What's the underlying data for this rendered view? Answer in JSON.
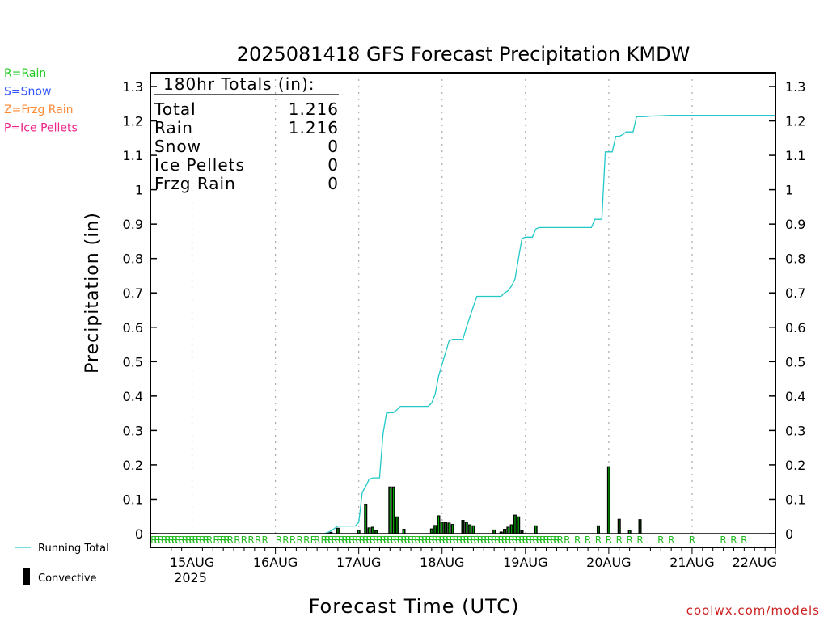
{
  "page": {
    "credit": "coolwx.com/models"
  },
  "legend_left": [
    {
      "label": "R=Rain",
      "color": "#22cc22"
    },
    {
      "label": "S=Snow",
      "color": "#3355ff"
    },
    {
      "label": "Z=Frzg Rain",
      "color": "#ff8833"
    },
    {
      "label": "P=Ice Pellets",
      "color": "#ee2288"
    }
  ],
  "legend_bottom": {
    "running_total": "Running Total",
    "convective": "Convective"
  },
  "totals_box": {
    "header": "180hr Totals (in):",
    "rows": [
      {
        "label": "Total",
        "value": "1.216"
      },
      {
        "label": "Rain",
        "value": "1.216"
      },
      {
        "label": "Snow",
        "value": "0"
      },
      {
        "label": "Ice Pellets",
        "value": "0"
      },
      {
        "label": "Frzg Rain",
        "value": "0"
      }
    ]
  },
  "chart_data": {
    "type": "bar",
    "title": "2025081418 GFS Forecast Precipitation KMDW",
    "xlabel": "Forecast Time (UTC)",
    "ylabel": "Precipitation (in)",
    "ylim": [
      0,
      1.35
    ],
    "yticks": [
      "0",
      "0.1",
      "0.2",
      "0.3",
      "0.4",
      "0.5",
      "0.6",
      "0.7",
      "0.8",
      "0.9",
      "1",
      "1.1",
      "1.2",
      "1.3"
    ],
    "xlim": [
      -6,
      174
    ],
    "xticks": [
      {
        "hour": 6,
        "label": "15AUG",
        "sub": "2025"
      },
      {
        "hour": 30,
        "label": "16AUG",
        "sub": ""
      },
      {
        "hour": 54,
        "label": "17AUG",
        "sub": ""
      },
      {
        "hour": 78,
        "label": "18AUG",
        "sub": ""
      },
      {
        "hour": 102,
        "label": "19AUG",
        "sub": ""
      },
      {
        "hour": 126,
        "label": "20AUG",
        "sub": ""
      },
      {
        "hour": 150,
        "label": "21AUG",
        "sub": ""
      },
      {
        "hour": 174,
        "label": "22AUG",
        "sub": ""
      }
    ],
    "grid": true,
    "colors": {
      "running_total": "#22c8c8",
      "bar": "#000000",
      "bar_inner": "#00aa00",
      "ptype": "#22bb22"
    },
    "precip_bars": {
      "name": "Convective",
      "x": [
        45,
        46,
        48,
        54,
        56,
        57,
        58,
        59,
        63,
        64,
        65,
        67,
        75,
        76,
        77,
        78,
        79,
        80,
        81,
        84,
        85,
        86,
        87,
        93,
        95,
        96,
        97,
        98,
        99,
        100,
        101,
        105,
        123,
        126,
        129,
        132,
        135
      ],
      "values": [
        0.003,
        0.005,
        0.017,
        0.011,
        0.087,
        0.018,
        0.02,
        0.01,
        0.137,
        0.137,
        0.05,
        0.014,
        0.015,
        0.025,
        0.053,
        0.034,
        0.034,
        0.032,
        0.028,
        0.04,
        0.034,
        0.027,
        0.024,
        0.012,
        0.006,
        0.014,
        0.02,
        0.027,
        0.055,
        0.05,
        0.01,
        0.024,
        0.024,
        0.196,
        0.043,
        0.01,
        0.042
      ]
    },
    "running_total": {
      "name": "Running Total",
      "x": [
        0,
        44,
        45,
        46,
        47,
        48,
        49,
        50,
        51,
        52,
        53,
        54,
        55,
        56,
        57,
        58,
        59,
        60,
        61,
        62,
        63,
        64,
        65,
        66,
        67,
        68,
        69,
        70,
        71,
        72,
        73,
        74,
        75,
        76,
        77,
        78,
        79,
        80,
        81,
        82,
        83,
        84,
        85,
        86,
        87,
        88,
        89,
        90,
        91,
        92,
        93,
        94,
        95,
        96,
        97,
        98,
        99,
        100,
        101,
        102,
        103,
        104,
        105,
        106,
        107,
        108,
        109,
        110,
        111,
        112,
        113,
        114,
        115,
        116,
        117,
        118,
        119,
        120,
        121,
        122,
        123,
        124,
        125,
        126,
        127,
        128,
        129,
        130,
        131,
        132,
        133,
        134,
        135,
        136,
        137,
        138,
        144,
        150,
        156,
        162,
        168,
        174
      ],
      "values": [
        0,
        0,
        0.003,
        0.008,
        0.015,
        0.022,
        0.022,
        0.022,
        0.022,
        0.022,
        0.022,
        0.033,
        0.12,
        0.138,
        0.158,
        0.162,
        0.162,
        0.162,
        0.29,
        0.35,
        0.352,
        0.352,
        0.36,
        0.37,
        0.37,
        0.37,
        0.37,
        0.37,
        0.37,
        0.37,
        0.37,
        0.37,
        0.38,
        0.405,
        0.458,
        0.492,
        0.526,
        0.56,
        0.565,
        0.565,
        0.565,
        0.565,
        0.6,
        0.63,
        0.66,
        0.69,
        0.69,
        0.69,
        0.69,
        0.69,
        0.69,
        0.69,
        0.69,
        0.7,
        0.706,
        0.72,
        0.74,
        0.8,
        0.858,
        0.862,
        0.862,
        0.862,
        0.886,
        0.89,
        0.89,
        0.89,
        0.89,
        0.89,
        0.89,
        0.89,
        0.89,
        0.89,
        0.89,
        0.89,
        0.89,
        0.89,
        0.89,
        0.89,
        0.89,
        0.914,
        0.914,
        0.914,
        1.11,
        1.11,
        1.11,
        1.155,
        1.155,
        1.16,
        1.168,
        1.168,
        1.168,
        1.212,
        1.212,
        1.212,
        1.213,
        1.214,
        1.216,
        1.216,
        1.216,
        1.216,
        1.216,
        1.216
      ]
    },
    "ptype_labels": {
      "label": "R",
      "x": [
        -5,
        -4,
        -3,
        -2,
        -1,
        0,
        1,
        2,
        3,
        4,
        5,
        6,
        7,
        8,
        9,
        10,
        11,
        13,
        14,
        15,
        16,
        17,
        19,
        21,
        23,
        25,
        27,
        31,
        33,
        35,
        37,
        39,
        41,
        42,
        44,
        45,
        46,
        47,
        48,
        49,
        50,
        51,
        52,
        53,
        54,
        55,
        56,
        57,
        58,
        59,
        60,
        61,
        62,
        63,
        64,
        65,
        66,
        67,
        68,
        69,
        70,
        71,
        72,
        73,
        74,
        75,
        76,
        77,
        78,
        79,
        80,
        81,
        82,
        83,
        84,
        85,
        86,
        87,
        88,
        89,
        90,
        91,
        92,
        93,
        94,
        95,
        96,
        97,
        98,
        99,
        100,
        101,
        102,
        103,
        104,
        105,
        106,
        107,
        108,
        109,
        110,
        111,
        112,
        114,
        117,
        120,
        123,
        126,
        129,
        132,
        135,
        141,
        144,
        150,
        159,
        162,
        165
      ]
    }
  }
}
